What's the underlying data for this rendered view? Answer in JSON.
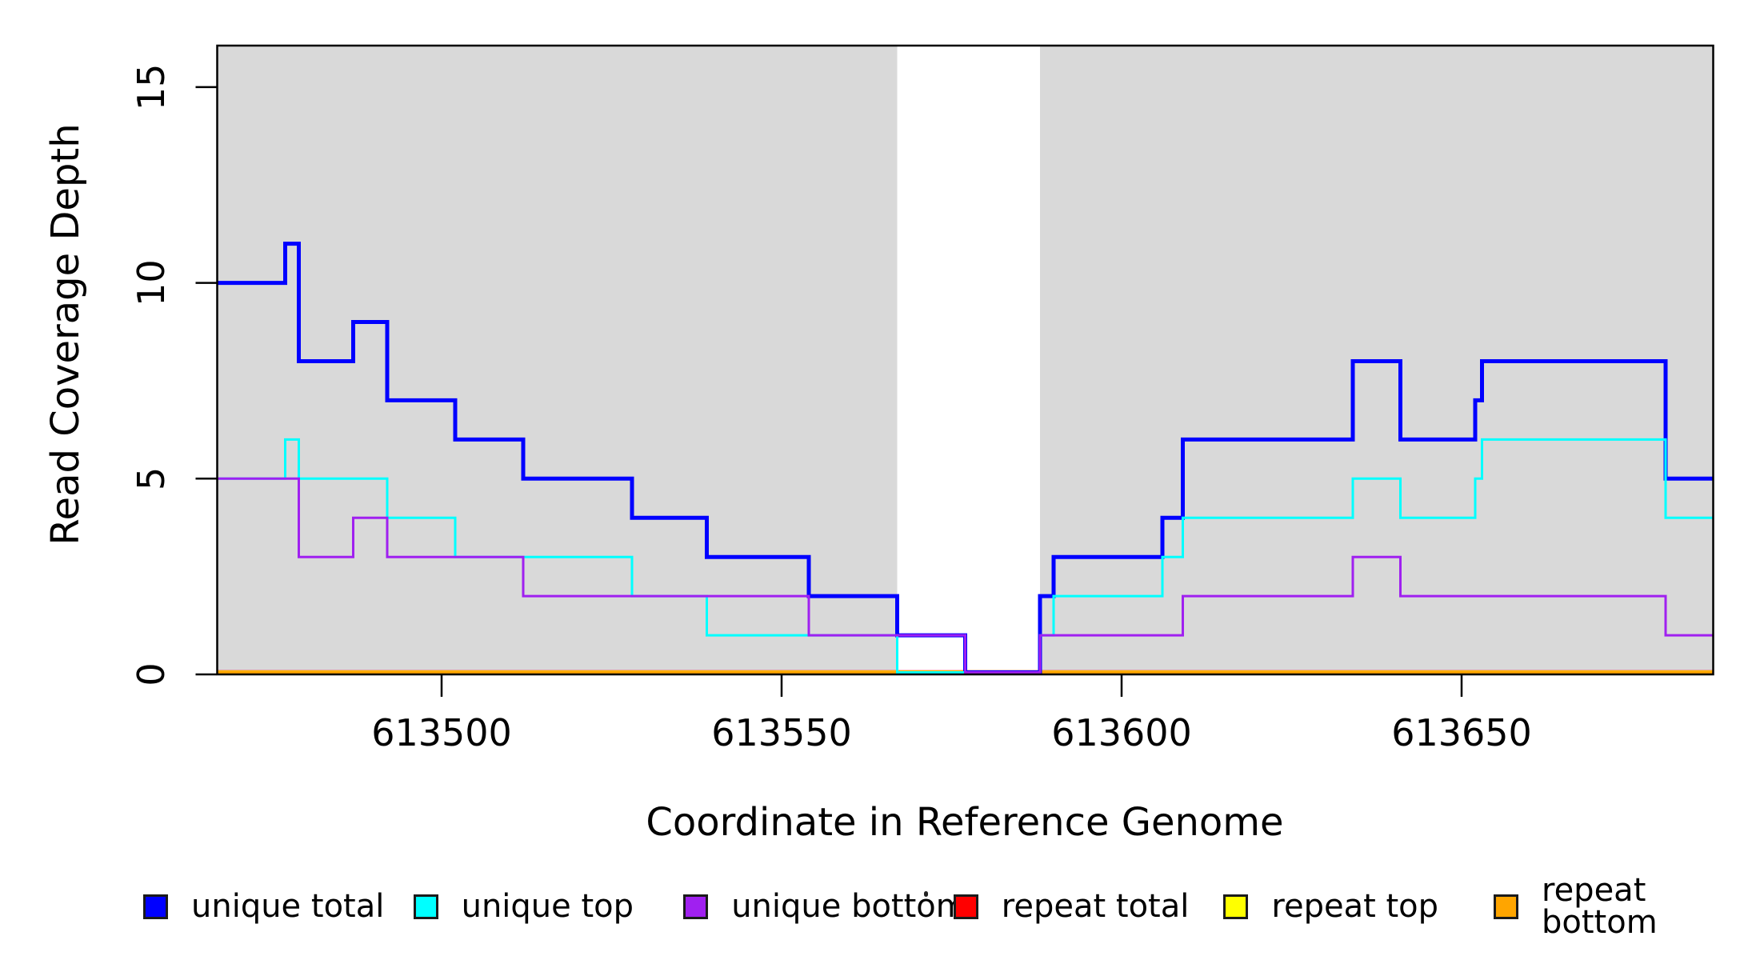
{
  "chart_data": {
    "type": "line",
    "drawstyle": "steps-post",
    "title": "",
    "xlabel": "Coordinate in Reference Genome",
    "ylabel": "Read Coverage Depth",
    "xlim": [
      613467,
      613687
    ],
    "ylim": [
      0,
      16.06
    ],
    "xticks": [
      613500,
      613550,
      613600,
      613650
    ],
    "yticks": [
      0,
      5,
      10,
      15
    ],
    "grid": false,
    "legend_position": "bottom",
    "background_color": "#ffffff",
    "shaded_regions": [
      {
        "name": "covered-region-left",
        "x0": 613467,
        "x1": 613567,
        "color": "#d9d9d9"
      },
      {
        "name": "covered-region-right",
        "x0": 613588,
        "x1": 613687,
        "color": "#d9d9d9"
      }
    ],
    "gap_region": {
      "x0": 613567,
      "x1": 613588
    },
    "series": [
      {
        "name": "repeat total",
        "color": "#ff0000",
        "width": 5.5,
        "breaks": [
          [
            613467,
            0
          ]
        ]
      },
      {
        "name": "repeat top",
        "color": "#ffff00",
        "width": 5,
        "breaks": [
          [
            613467,
            0
          ]
        ]
      },
      {
        "name": "repeat bottom",
        "color": "#ffa500",
        "width": 4.5,
        "breaks": [
          [
            613467,
            0
          ]
        ]
      },
      {
        "name": "unique total",
        "color": "#0000ff",
        "width": 5,
        "breaks": [
          [
            613467,
            10
          ],
          [
            613477,
            11
          ],
          [
            613479,
            8
          ],
          [
            613487,
            9
          ],
          [
            613492,
            7
          ],
          [
            613502,
            6
          ],
          [
            613512,
            5
          ],
          [
            613528,
            4
          ],
          [
            613539,
            3
          ],
          [
            613554,
            2
          ],
          [
            613567,
            1
          ],
          [
            613577,
            0
          ],
          [
            613588,
            2
          ],
          [
            613590,
            3
          ],
          [
            613606,
            4
          ],
          [
            613609,
            6
          ],
          [
            613634,
            8
          ],
          [
            613641,
            6
          ],
          [
            613652,
            7
          ],
          [
            613653,
            8
          ],
          [
            613680,
            5
          ]
        ]
      },
      {
        "name": "unique top",
        "color": "#00ffff",
        "width": 3,
        "breaks": [
          [
            613467,
            5
          ],
          [
            613477,
            6
          ],
          [
            613479,
            5
          ],
          [
            613492,
            4
          ],
          [
            613502,
            3
          ],
          [
            613528,
            2
          ],
          [
            613539,
            1
          ],
          [
            613567,
            0
          ],
          [
            613588,
            1
          ],
          [
            613590,
            2
          ],
          [
            613606,
            3
          ],
          [
            613609,
            4
          ],
          [
            613634,
            5
          ],
          [
            613641,
            4
          ],
          [
            613652,
            5
          ],
          [
            613653,
            6
          ],
          [
            613680,
            4
          ]
        ]
      },
      {
        "name": "unique bottom",
        "color": "#a020f0",
        "width": 3,
        "breaks": [
          [
            613467,
            5
          ],
          [
            613479,
            3
          ],
          [
            613487,
            4
          ],
          [
            613492,
            3
          ],
          [
            613512,
            2
          ],
          [
            613554,
            1
          ],
          [
            613577,
            0
          ],
          [
            613588,
            1
          ],
          [
            613609,
            2
          ],
          [
            613634,
            3
          ],
          [
            613641,
            2
          ],
          [
            613680,
            1
          ]
        ]
      }
    ],
    "legend": [
      {
        "label": "unique total",
        "color": "#0000ff"
      },
      {
        "label": "unique top",
        "color": "#00ffff"
      },
      {
        "label": "unique bottom",
        "color": "#a020f0"
      },
      {
        "label": "repeat total",
        "color": "#ff0000"
      },
      {
        "label": "repeat top",
        "color": "#ffff00"
      },
      {
        "label": "repeat bottom",
        "color": "#ffa500"
      }
    ]
  }
}
